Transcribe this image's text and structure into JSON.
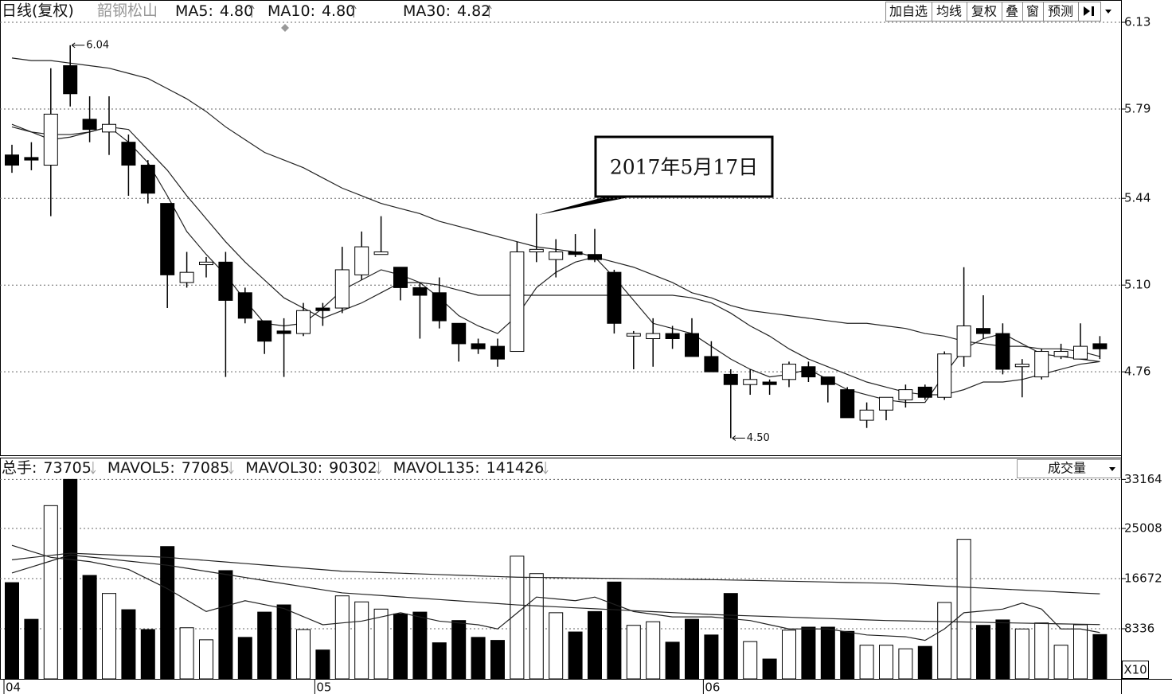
{
  "header": {
    "period": "日线(复权)",
    "stock": "韶钢松山"
  },
  "toolbar": [
    "加自选",
    "均线",
    "复权",
    "叠",
    "窗",
    "预测"
  ],
  "chart_data": [
    {
      "type": "candlestick",
      "categories": [
        "04",
        null,
        null,
        null,
        null,
        null,
        null,
        null,
        null,
        null,
        null,
        null,
        null,
        null,
        null,
        null,
        "05",
        null,
        null,
        null,
        null,
        null,
        null,
        null,
        null,
        null,
        null,
        null,
        null,
        null,
        null,
        null,
        null,
        null,
        null,
        null,
        "06",
        null,
        null,
        null,
        null,
        null,
        null,
        null,
        null,
        null,
        null,
        null,
        null,
        null,
        null,
        null,
        null,
        null,
        null,
        null,
        null
      ],
      "open": [
        5.61,
        5.6,
        5.57,
        5.96,
        5.75,
        5.7,
        5.66,
        5.57,
        5.42,
        5.11,
        5.18,
        5.19,
        5.07,
        4.96,
        4.92,
        4.91,
        5.01,
        5.01,
        5.14,
        5.22,
        5.17,
        5.09,
        5.07,
        4.95,
        4.87,
        4.86,
        4.84,
        5.23,
        5.2,
        5.23,
        5.22,
        5.15,
        4.9,
        4.89,
        4.91,
        4.91,
        4.82,
        4.75,
        4.71,
        4.72,
        4.73,
        4.78,
        4.74,
        4.69,
        4.57,
        4.61,
        4.65,
        4.7,
        4.66,
        4.82,
        4.93,
        4.91,
        4.78,
        4.74,
        4.82,
        4.81,
        4.87
      ],
      "high": [
        5.65,
        5.66,
        5.95,
        6.04,
        5.84,
        5.84,
        5.69,
        5.59,
        5.42,
        5.23,
        5.21,
        5.23,
        5.09,
        4.96,
        4.97,
        5.03,
        5.03,
        5.25,
        5.31,
        5.37,
        5.17,
        5.11,
        5.13,
        4.95,
        4.89,
        4.89,
        5.27,
        5.38,
        5.28,
        5.3,
        5.32,
        5.16,
        4.92,
        4.97,
        4.94,
        4.97,
        4.88,
        4.77,
        4.77,
        4.73,
        4.8,
        4.8,
        4.74,
        4.7,
        4.64,
        4.66,
        4.71,
        4.71,
        4.84,
        5.17,
        5.06,
        4.95,
        4.81,
        4.85,
        4.87,
        4.95,
        4.9
      ],
      "low": [
        5.54,
        5.55,
        5.37,
        5.8,
        5.66,
        5.61,
        5.45,
        5.42,
        5.01,
        5.09,
        5.13,
        4.74,
        4.95,
        4.83,
        4.74,
        4.9,
        4.94,
        4.99,
        5.12,
        5.22,
        5.04,
        4.89,
        4.93,
        4.8,
        4.83,
        4.78,
        4.84,
        5.19,
        5.13,
        5.21,
        5.19,
        4.91,
        4.77,
        4.78,
        4.85,
        4.82,
        4.76,
        4.5,
        4.67,
        4.67,
        4.7,
        4.72,
        4.64,
        4.58,
        4.54,
        4.57,
        4.62,
        4.65,
        4.65,
        4.78,
        4.89,
        4.75,
        4.66,
        4.73,
        4.81,
        4.81,
        4.81
      ],
      "close": [
        5.57,
        5.59,
        5.77,
        5.85,
        5.71,
        5.73,
        5.57,
        5.46,
        5.14,
        5.15,
        5.19,
        5.04,
        4.97,
        4.88,
        4.91,
        5.0,
        5.0,
        5.16,
        5.25,
        5.23,
        5.09,
        5.06,
        4.96,
        4.87,
        4.85,
        4.81,
        5.23,
        5.24,
        5.23,
        5.22,
        5.2,
        4.95,
        4.91,
        4.91,
        4.89,
        4.82,
        4.76,
        4.71,
        4.73,
        4.71,
        4.79,
        4.74,
        4.71,
        4.58,
        4.61,
        4.66,
        4.69,
        4.66,
        4.83,
        4.94,
        4.91,
        4.77,
        4.79,
        4.84,
        4.84,
        4.86,
        4.85
      ],
      "up_color": "#ffffff",
      "down_color": "#000000",
      "ylim": [
        4.433,
        6.155
      ],
      "yticks": [
        6.13,
        5.79,
        5.44,
        {
          "value": 5.1,
          "label": "5.10"
        },
        4.76
      ],
      "grid": true,
      "max_label": "6.04",
      "min_label": "4.50",
      "annotation": "2017年5月17日",
      "series": [
        {
          "name": "MA5:",
          "current": {
            "value": 4.8,
            "label": "4.80"
          },
          "color": "#222222",
          "values": [
            5.73,
            5.7,
            5.67,
            5.68,
            5.7,
            5.72,
            5.66,
            5.58,
            5.45,
            5.31,
            5.22,
            5.14,
            5.04,
            4.95,
            4.94,
            4.95,
            5.01,
            5.08,
            5.12,
            5.16,
            5.14,
            5.11,
            5.05,
            4.98,
            4.94,
            4.91,
            4.98,
            5.09,
            5.15,
            5.19,
            5.21,
            5.13,
            5.04,
            4.95,
            4.93,
            4.91,
            4.86,
            4.81,
            4.77,
            4.74,
            4.75,
            4.77,
            4.73,
            4.69,
            4.67,
            4.65,
            4.64,
            4.64,
            4.75,
            4.85,
            4.89,
            4.91,
            4.87,
            4.83,
            4.82,
            4.81,
            4.8
          ]
        },
        {
          "name": "MA10:",
          "current": {
            "value": 4.8,
            "label": "4.80"
          },
          "color": "#222222",
          "values": [
            5.72,
            5.7,
            5.69,
            5.69,
            5.7,
            5.72,
            5.71,
            5.63,
            5.55,
            5.45,
            5.36,
            5.27,
            5.19,
            5.12,
            5.05,
            5.01,
            4.97,
            5.0,
            5.03,
            5.07,
            5.11,
            5.11,
            5.1,
            5.08,
            5.06,
            5.06,
            5.06,
            5.06,
            5.06,
            5.06,
            5.06,
            5.06,
            5.06,
            5.06,
            5.06,
            5.05,
            5.03,
            4.99,
            4.94,
            4.9,
            4.85,
            4.81,
            4.78,
            4.75,
            4.72,
            4.7,
            4.68,
            4.67,
            4.67,
            4.69,
            4.72,
            4.72,
            4.73,
            4.75,
            4.77,
            4.79,
            4.8
          ]
        },
        {
          "name": "MA30:",
          "current": {
            "value": 4.82,
            "label": "4.82"
          },
          "color": "#222222",
          "values": [
            5.99,
            5.98,
            5.98,
            5.97,
            5.96,
            5.95,
            5.93,
            5.91,
            5.87,
            5.83,
            5.78,
            5.72,
            5.67,
            5.62,
            5.59,
            5.56,
            5.52,
            5.48,
            5.45,
            5.42,
            5.4,
            5.38,
            5.35,
            5.33,
            5.31,
            5.29,
            5.27,
            5.25,
            5.24,
            5.23,
            5.21,
            5.19,
            5.17,
            5.14,
            5.11,
            5.07,
            5.05,
            5.02,
            5.0,
            4.99,
            4.98,
            4.97,
            4.96,
            4.95,
            4.95,
            4.94,
            4.93,
            4.91,
            4.9,
            4.88,
            4.87,
            4.86,
            4.86,
            4.85,
            4.85,
            4.84,
            4.82
          ]
        }
      ]
    },
    {
      "type": "bar",
      "title": "成交量",
      "total": {
        "name": "总手:",
        "value": 73705
      },
      "scale_label": "X10",
      "values": [
        16000,
        9900,
        28800,
        33164,
        17200,
        14200,
        11500,
        8200,
        22000,
        8500,
        6500,
        18000,
        6900,
        11100,
        12300,
        8200,
        4800,
        13800,
        12800,
        11600,
        10800,
        11100,
        6000,
        9700,
        6900,
        6400,
        20400,
        17500,
        11000,
        7800,
        11200,
        16100,
        8900,
        9500,
        6100,
        9900,
        7300,
        14200,
        6200,
        3300,
        8100,
        8600,
        8600,
        7900,
        5600,
        5600,
        5000,
        5400,
        12700,
        23200,
        8900,
        9800,
        8300,
        9300,
        5600,
        9000,
        7370
      ],
      "ylim": [
        0,
        33740
      ],
      "yticks": [
        33164,
        25008,
        16672,
        8336
      ],
      "grid": true,
      "series": [
        {
          "name": "MAVOL5:",
          "current": 77085,
          "color": "#222222",
          "values": [
            22200,
            21200,
            20200,
            19850,
            19500,
            18850,
            18200,
            16600,
            15000,
            13100,
            11200,
            12100,
            13000,
            12350,
            11700,
            10350,
            9000,
            9300,
            9600,
            10300,
            11000,
            10300,
            9600,
            9300,
            9000,
            8300,
            10950,
            13600,
            13300,
            13000,
            13600,
            12400,
            11200,
            10750,
            10300,
            10300,
            10300,
            10000,
            9700,
            9000,
            8300,
            8300,
            8300,
            7800,
            7300,
            7150,
            7000,
            6400,
            8300,
            11000,
            11300,
            11600,
            12600,
            11600,
            8300,
            8300,
            7709
          ]
        },
        {
          "name": "MAVOL30:",
          "current": 90302,
          "color": "#222222",
          "values": [
            17600,
            18600,
            19600,
            20600,
            20260,
            19920,
            19580,
            19240,
            18900,
            18390,
            17880,
            17370,
            16860,
            16340,
            15830,
            15320,
            14810,
            14300,
            14080,
            13860,
            13630,
            13410,
            13190,
            12970,
            12740,
            12520,
            12300,
            12140,
            11980,
            11820,
            11660,
            11500,
            11340,
            11180,
            11020,
            10860,
            10700,
            10590,
            10480,
            10370,
            10260,
            10140,
            10030,
            9920,
            9810,
            9700,
            9640,
            9580,
            9520,
            9460,
            9400,
            9330,
            9270,
            9210,
            9150,
            9090,
            9030
          ]
        },
        {
          "name": "MAVOL135:",
          "current": 141426,
          "color": "#222222",
          "values": [
            19800,
            20170,
            20530,
            20900,
            20760,
            20620,
            20480,
            20340,
            20200,
            19940,
            19690,
            19430,
            19180,
            18920,
            18670,
            18410,
            18160,
            17900,
            17790,
            17680,
            17570,
            17460,
            17340,
            17230,
            17120,
            17010,
            16900,
            16860,
            16820,
            16780,
            16740,
            16700,
            16660,
            16620,
            16580,
            16540,
            16500,
            16430,
            16370,
            16300,
            16230,
            16170,
            16100,
            16030,
            15970,
            15900,
            15740,
            15580,
            15410,
            15250,
            15090,
            14930,
            14770,
            14610,
            14440,
            14280,
            14140
          ]
        }
      ]
    }
  ]
}
